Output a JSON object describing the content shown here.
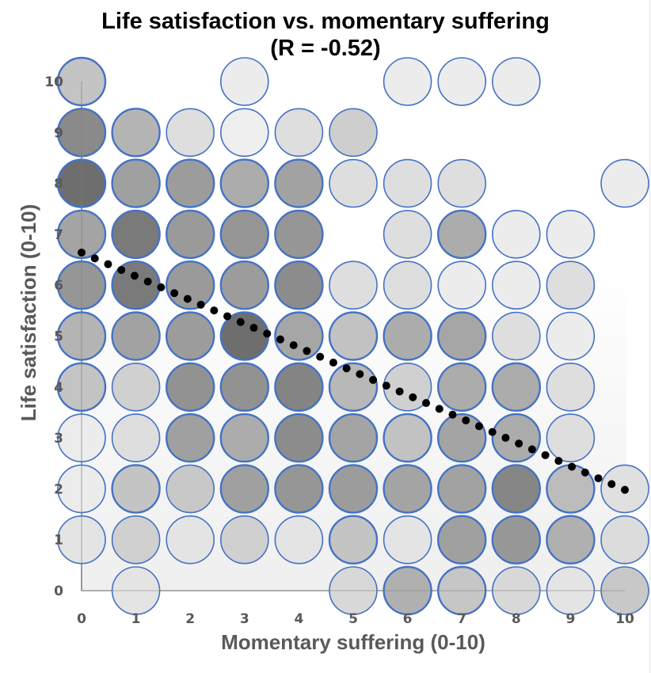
{
  "chart_data": {
    "type": "scatter",
    "subtype": "bubble-grid",
    "title": "Life satisfaction vs. momentary suffering",
    "subtitle": "(R = -0.52)",
    "xlabel": "Momentary suffering (0-10)",
    "ylabel": "Life satisfaction (0-10)",
    "xlim": [
      0,
      10
    ],
    "ylim": [
      0,
      10
    ],
    "x_ticks": [
      "0",
      "1",
      "2",
      "3",
      "4",
      "5",
      "6",
      "7",
      "8",
      "9",
      "10"
    ],
    "y_ticks": [
      "0",
      "1",
      "2",
      "3",
      "4",
      "5",
      "6",
      "7",
      "8",
      "9",
      "10"
    ],
    "grid": false,
    "legend": "none",
    "marker_stroke_color": "#4472c4",
    "trendline": {
      "type": "linear",
      "style": "dotted",
      "color": "#000000",
      "start": {
        "x": 0,
        "y": 6.64
      },
      "end": {
        "x": 10,
        "y": 1.98
      }
    },
    "note": "Each cell is a circle; darker fill indicates more observations. Values are gray fill levels (0 = black, 255 = white).",
    "rows": [
      {
        "y": 10,
        "cells": [
          196,
          null,
          null,
          236,
          null,
          null,
          236,
          236,
          236,
          null,
          null
        ]
      },
      {
        "y": 9,
        "cells": [
          138,
          180,
          222,
          239,
          222,
          206,
          null,
          null,
          null,
          null,
          null
        ]
      },
      {
        "y": 8,
        "cells": [
          110,
          160,
          156,
          172,
          162,
          222,
          222,
          222,
          null,
          null,
          236
        ]
      },
      {
        "y": 7,
        "cells": [
          164,
          122,
          154,
          150,
          150,
          null,
          222,
          172,
          236,
          236,
          null
        ]
      },
      {
        "y": 6,
        "cells": [
          150,
          122,
          154,
          156,
          140,
          222,
          222,
          236,
          236,
          222,
          null
        ]
      },
      {
        "y": 5,
        "cells": [
          180,
          162,
          156,
          110,
          166,
          194,
          172,
          166,
          222,
          236,
          null
        ]
      },
      {
        "y": 4,
        "cells": [
          196,
          208,
          146,
          146,
          132,
          184,
          208,
          172,
          172,
          222,
          null
        ]
      },
      {
        "y": 3,
        "cells": [
          236,
          222,
          160,
          172,
          140,
          164,
          194,
          164,
          172,
          222,
          null
        ]
      },
      {
        "y": 2,
        "cells": [
          236,
          196,
          200,
          160,
          150,
          156,
          164,
          162,
          134,
          188,
          224
        ]
      },
      {
        "y": 1,
        "cells": [
          228,
          208,
          228,
          208,
          228,
          196,
          228,
          160,
          152,
          176,
          220
        ]
      },
      {
        "y": 0,
        "cells": [
          null,
          228,
          null,
          null,
          null,
          216,
          176,
          198,
          216,
          228,
          200
        ]
      }
    ]
  }
}
